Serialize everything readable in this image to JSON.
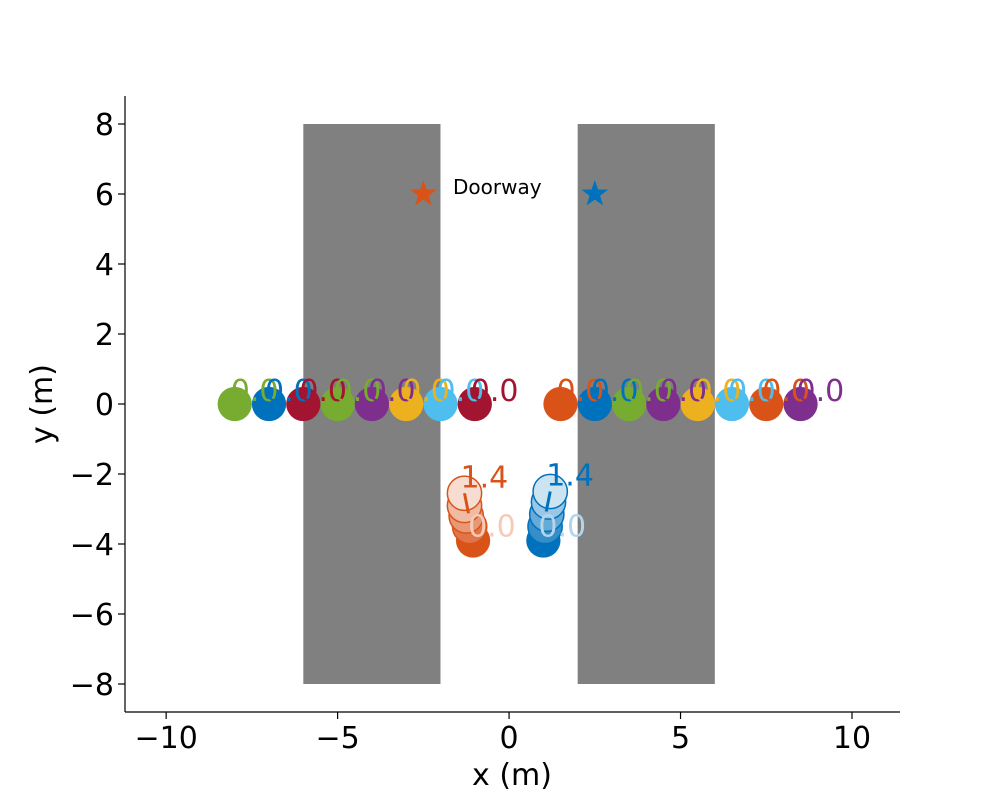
{
  "chart_data": {
    "type": "scatter",
    "xlabel": "x (m)",
    "ylabel": "y (m)",
    "xlim": [
      -11.2,
      11.4
    ],
    "ylim": [
      -8.8,
      8.8
    ],
    "xticks": [
      -10,
      -5,
      0,
      5,
      10
    ],
    "yticks": [
      -8,
      -6,
      -4,
      -2,
      0,
      2,
      4,
      6,
      8
    ],
    "xtick_labels": [
      "−10",
      "−5",
      "0",
      "5",
      "10"
    ],
    "ytick_labels": [
      "−8",
      "−6",
      "−4",
      "−2",
      "0",
      "2",
      "4",
      "6",
      "8"
    ],
    "grid": false,
    "walls": [
      {
        "x": [
          -6,
          -2
        ],
        "y": [
          -8,
          8
        ],
        "color": "#808080"
      },
      {
        "x": [
          2,
          6
        ],
        "y": [
          -8,
          8
        ],
        "color": "#808080"
      }
    ],
    "goals": [
      {
        "x": -2.5,
        "y": 6,
        "color": "#D95319",
        "marker": "star"
      },
      {
        "x": 2.5,
        "y": 6,
        "color": "#0072BD",
        "marker": "star"
      }
    ],
    "legend": {
      "label": "Doorway",
      "placement": "top-center"
    },
    "static_agents": [
      {
        "x": -8.0,
        "y": 0,
        "color": "#77AC30",
        "label": "0.0"
      },
      {
        "x": -7.0,
        "y": 0,
        "color": "#0072BD",
        "label": "0.0"
      },
      {
        "x": -6.0,
        "y": 0,
        "color": "#A2142F",
        "label": "0.0"
      },
      {
        "x": -5.0,
        "y": 0,
        "color": "#77AC30",
        "label": "0.0"
      },
      {
        "x": -4.0,
        "y": 0,
        "color": "#7E2F8E",
        "label": "0.0"
      },
      {
        "x": -3.0,
        "y": 0,
        "color": "#EDB120",
        "label": "0.0"
      },
      {
        "x": -2.0,
        "y": 0,
        "color": "#4DBEEE",
        "label": "0.0"
      },
      {
        "x": -1.0,
        "y": 0,
        "color": "#A2142F",
        "label": "0.0"
      },
      {
        "x": 1.5,
        "y": 0,
        "color": "#D95319",
        "label": "0.0"
      },
      {
        "x": 2.5,
        "y": 0,
        "color": "#0072BD",
        "label": "0.0"
      },
      {
        "x": 3.5,
        "y": 0,
        "color": "#77AC30",
        "label": "0.0"
      },
      {
        "x": 4.5,
        "y": 0,
        "color": "#7E2F8E",
        "label": "0.0"
      },
      {
        "x": 5.5,
        "y": 0,
        "color": "#EDB120",
        "label": "0.0"
      },
      {
        "x": 6.5,
        "y": 0,
        "color": "#4DBEEE",
        "label": "0.0"
      },
      {
        "x": 7.5,
        "y": 0,
        "color": "#D95319",
        "label": "0.0"
      },
      {
        "x": 8.5,
        "y": 0,
        "color": "#7E2F8E",
        "label": "0.0"
      }
    ],
    "trajectories": [
      {
        "color": "#D95319",
        "points": [
          {
            "x": -1.05,
            "y": -3.9
          },
          {
            "x": -1.15,
            "y": -3.5
          },
          {
            "x": -1.25,
            "y": -3.2
          },
          {
            "x": -1.3,
            "y": -2.9
          },
          {
            "x": -1.3,
            "y": -2.55
          }
        ],
        "start_label": "0.0",
        "end_label": "1.4"
      },
      {
        "color": "#0072BD",
        "points": [
          {
            "x": 1.0,
            "y": -3.9
          },
          {
            "x": 1.05,
            "y": -3.5
          },
          {
            "x": 1.1,
            "y": -3.15
          },
          {
            "x": 1.15,
            "y": -2.8
          },
          {
            "x": 1.2,
            "y": -2.5
          }
        ],
        "start_label": "0.0",
        "end_label": "1.4"
      }
    ]
  }
}
